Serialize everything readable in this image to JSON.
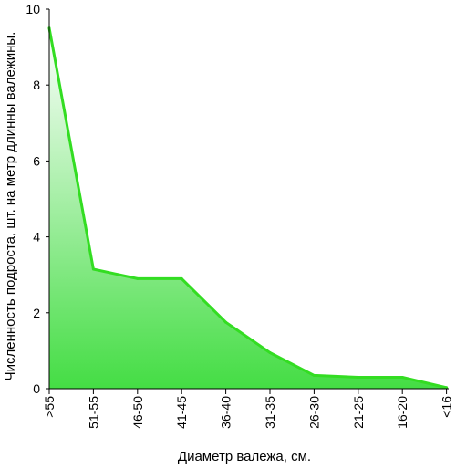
{
  "chart_data": {
    "type": "area",
    "xlabel": "Диаметр валежа, см.",
    "ylabel": "Численность подроста, шт.  на метр длинны валежины.",
    "categories": [
      ">55",
      "51-55",
      "46-50",
      "41-45",
      "36-40",
      "31-35",
      "26-30",
      "21-25",
      "16-20",
      "<16"
    ],
    "values": [
      9.5,
      3.15,
      2.9,
      2.9,
      1.75,
      0.95,
      0.35,
      0.3,
      0.3,
      0.03
    ],
    "ylim": [
      0,
      10
    ],
    "yticks": [
      "0",
      "2",
      "4",
      "6",
      "8",
      "10"
    ],
    "grid": false,
    "colors": {
      "line": "#33dd22",
      "fill_top": "#ffffff",
      "fill_bottom": "#44dd44"
    }
  }
}
